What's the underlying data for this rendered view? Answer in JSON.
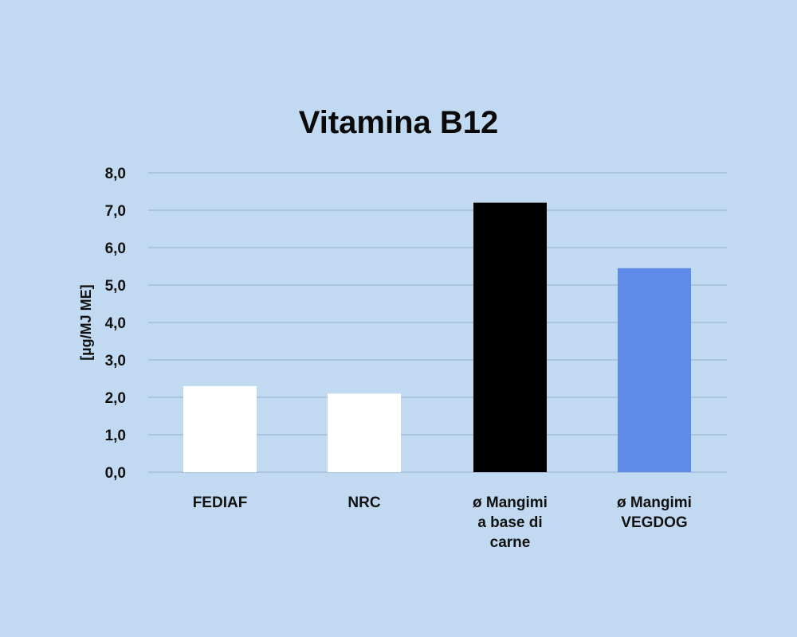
{
  "chart_data": {
    "type": "bar",
    "title": "Vitamina B12",
    "xlabel": "",
    "ylabel": "[µg/MJ ME]",
    "categories": [
      [
        "FEDIAF"
      ],
      [
        "NRC"
      ],
      [
        "ø Mangimi",
        "a base di",
        "carne"
      ],
      [
        "ø Mangimi",
        "VEGDOG"
      ]
    ],
    "values": [
      2.3,
      2.1,
      7.2,
      5.45
    ],
    "bar_colors": [
      "#ffffff",
      "#ffffff",
      "#000000",
      "#5e8be8"
    ],
    "ylim": [
      0,
      8
    ],
    "yticks": [
      "0,0",
      "1,0",
      "2,0",
      "3,0",
      "4,0",
      "5,0",
      "6,0",
      "7,0",
      "8,0"
    ],
    "grid": true,
    "legend": "none"
  },
  "colors": {
    "background": "#c2daf1",
    "grid": "#9fb9d3",
    "text": "#111111"
  }
}
